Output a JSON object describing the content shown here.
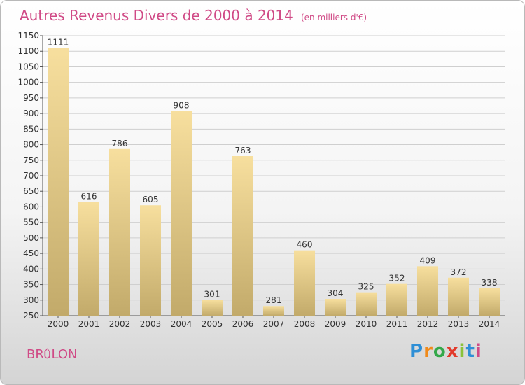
{
  "chart_data": {
    "type": "bar",
    "title": "Autres Revenus Divers de 2000 à 2014",
    "subtitle": "(en milliers d'€)",
    "categories": [
      "2000",
      "2001",
      "2002",
      "2003",
      "2004",
      "2005",
      "2006",
      "2007",
      "2008",
      "2009",
      "2010",
      "2011",
      "2012",
      "2013",
      "2014"
    ],
    "values": [
      1111,
      616,
      786,
      605,
      908,
      301,
      763,
      281,
      460,
      304,
      325,
      352,
      409,
      372,
      338
    ],
    "ylim": [
      250,
      1150
    ],
    "yticks": [
      250,
      300,
      350,
      400,
      450,
      500,
      550,
      600,
      650,
      700,
      750,
      800,
      850,
      900,
      950,
      1000,
      1050,
      1100,
      1150
    ],
    "grid": true,
    "colors": {
      "bar_top": "#f7df9e",
      "bar_bottom": "#c2aa6a",
      "grid": "#cfcfcf",
      "text_accent": "#d04a86"
    }
  },
  "commune": "BRûLON",
  "logo": {
    "p": "P",
    "r": "r",
    "o": "o",
    "x": "x",
    "i1": "i",
    "t": "t",
    "i2": "i"
  }
}
